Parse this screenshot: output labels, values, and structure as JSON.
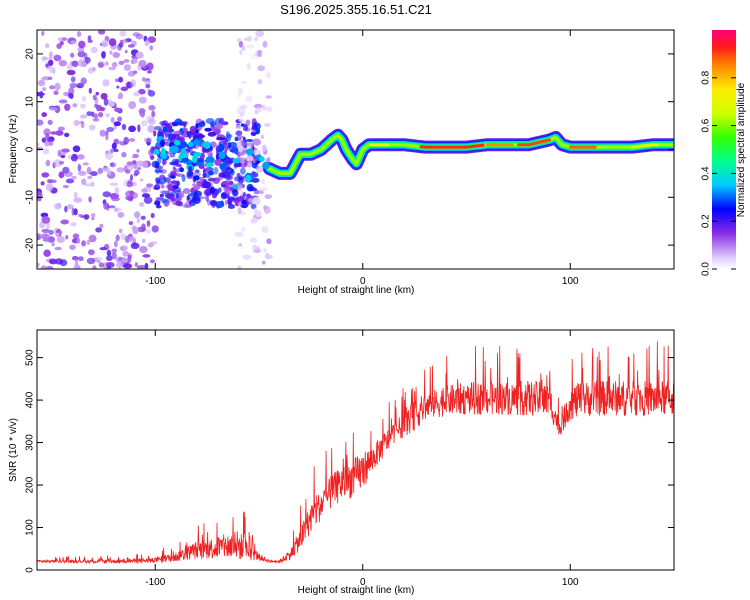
{
  "figure": {
    "title": "S196.2025.355.16.51.C21"
  },
  "chart_data": [
    {
      "type": "heatmap",
      "title": "S196.2025.355.16.51.C21",
      "xlabel": "Height of straight line (km)",
      "ylabel": "Frequency (Hz)",
      "xlim": [
        -157,
        150
      ],
      "ylim": [
        -25,
        25
      ],
      "x_ticks": [
        {
          "value": -100,
          "label": "-100"
        },
        {
          "value": 0,
          "label": "0"
        },
        {
          "value": 100,
          "label": "100"
        }
      ],
      "y_ticks": [
        {
          "value": -20,
          "label": "-20"
        },
        {
          "value": -10,
          "label": "-10"
        },
        {
          "value": 0,
          "label": "0"
        },
        {
          "value": 10,
          "label": "10"
        },
        {
          "value": 20,
          "label": "20"
        }
      ],
      "colorbar": {
        "label": "Normalized spectral amplitude",
        "range": [
          0,
          1
        ],
        "ticks": [
          {
            "value": 0.0,
            "label": "0.0"
          },
          {
            "value": 0.2,
            "label": "0.2"
          },
          {
            "value": 0.4,
            "label": "0.4"
          },
          {
            "value": 0.6,
            "label": "0.6"
          },
          {
            "value": 0.8,
            "label": "0.8"
          }
        ],
        "colormap": "rainbow"
      },
      "ridge": {
        "description": "dominant frequency track (Hz) vs height (km)",
        "x": [
          -45,
          -40,
          -35,
          -30,
          -25,
          -20,
          -15,
          -12,
          -10,
          -8,
          -5,
          -3,
          0,
          3,
          10,
          20,
          30,
          40,
          50,
          60,
          70,
          80,
          85,
          90,
          93,
          96,
          100,
          110,
          120,
          130,
          140,
          150
        ],
        "y": [
          -4,
          -5,
          -5,
          -1,
          -1,
          0,
          2,
          3,
          2,
          0,
          -2,
          -3,
          0,
          1,
          1,
          1,
          0.5,
          0.5,
          0.5,
          1,
          1,
          1,
          1.5,
          2,
          2.5,
          1,
          0.5,
          0.5,
          0.5,
          0.5,
          1,
          1
        ]
      },
      "scatter_regions": [
        {
          "x_range": [
            -157,
            -100
          ],
          "y_range": [
            -25,
            25
          ],
          "intensity": [
            0.05,
            0.2
          ],
          "density": "high"
        },
        {
          "x_range": [
            -100,
            -50
          ],
          "y_range": [
            -12,
            6
          ],
          "intensity": [
            0.1,
            0.3
          ],
          "density": "high"
        },
        {
          "x_range": [
            -60,
            -45
          ],
          "y_range": [
            -25,
            25
          ],
          "intensity": [
            0.02,
            0.1
          ],
          "density": "low"
        }
      ]
    },
    {
      "type": "line",
      "xlabel": "Height of straight line (km)",
      "ylabel": "SNR (10 * v/v)",
      "xlim": [
        -157,
        150
      ],
      "ylim": [
        0,
        565
      ],
      "color": "#ee2222",
      "x_ticks": [
        {
          "value": -100,
          "label": "-100"
        },
        {
          "value": 0,
          "label": "0"
        },
        {
          "value": 100,
          "label": "100"
        }
      ],
      "y_ticks": [
        {
          "value": 0,
          "label": "0"
        },
        {
          "value": 100,
          "label": "100"
        },
        {
          "value": 200,
          "label": "200"
        },
        {
          "value": 300,
          "label": "300"
        },
        {
          "value": 400,
          "label": "400"
        },
        {
          "value": 500,
          "label": "500"
        }
      ],
      "envelope": {
        "description": "approximate baseline and spike amplitude of the SNR trace",
        "x": [
          -157,
          -120,
          -100,
          -90,
          -80,
          -70,
          -60,
          -50,
          -45,
          -40,
          -35,
          -30,
          -25,
          -20,
          -15,
          -10,
          -5,
          0,
          5,
          10,
          15,
          20,
          25,
          30,
          40,
          50,
          60,
          70,
          80,
          90,
          95,
          100,
          110,
          120,
          130,
          140,
          150
        ],
        "baseline": [
          20,
          20,
          22,
          30,
          45,
          50,
          55,
          30,
          20,
          20,
          35,
          70,
          120,
          150,
          180,
          200,
          210,
          230,
          260,
          290,
          320,
          340,
          360,
          380,
          395,
          400,
          400,
          400,
          400,
          395,
          330,
          390,
          400,
          400,
          400,
          400,
          400
        ],
        "spike": [
          10,
          15,
          20,
          40,
          70,
          90,
          120,
          30,
          10,
          15,
          40,
          90,
          120,
          120,
          130,
          140,
          150,
          150,
          100,
          100,
          80,
          100,
          120,
          110,
          120,
          130,
          130,
          130,
          140,
          140,
          60,
          140,
          140,
          140,
          140,
          140,
          140
        ]
      }
    }
  ]
}
